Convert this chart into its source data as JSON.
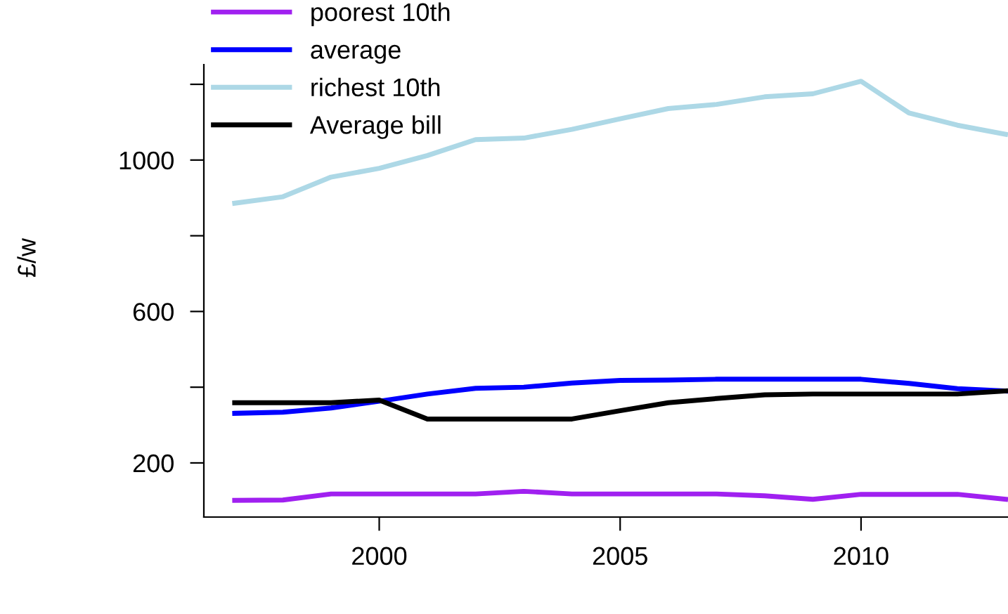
{
  "chart_data": {
    "type": "line",
    "ylabel": "£/w",
    "x": [
      1997,
      1998,
      1999,
      2000,
      2001,
      2002,
      2003,
      2004,
      2005,
      2006,
      2007,
      2008,
      2009,
      2010,
      2011,
      2012,
      2013
    ],
    "series": [
      {
        "name": "poorest 10th",
        "color": "#a020f0",
        "values": [
          101,
          102,
          118,
          118,
          118,
          118,
          125,
          118,
          118,
          118,
          118,
          113,
          104,
          117,
          117,
          117,
          104
        ]
      },
      {
        "name": "average",
        "color": "#0000ff",
        "values": [
          331,
          334,
          345,
          363,
          382,
          397,
          400,
          411,
          418,
          419,
          421,
          421,
          421,
          421,
          410,
          396,
          390
        ]
      },
      {
        "name": "richest 10th",
        "color": "#add8e6",
        "values": [
          886,
          903,
          955,
          978,
          1012,
          1054,
          1058,
          1081,
          1109,
          1136,
          1147,
          1167,
          1175,
          1208,
          1124,
          1092,
          1068
        ]
      },
      {
        "name": "Average bill",
        "color": "#000000",
        "values": [
          359,
          359,
          359,
          366,
          316,
          316,
          316,
          316,
          338,
          359,
          370,
          380,
          382,
          382,
          382,
          382,
          390
        ]
      }
    ],
    "xlim": [
      1996.36,
      2013.05
    ],
    "ylim": [
      57,
      1252
    ],
    "xticks": [
      2000,
      2005,
      2010
    ],
    "yticks": [
      200,
      {
        "value": 400,
        "label": null
      },
      600,
      {
        "value": 800,
        "label": null
      },
      1000,
      {
        "value": 1200,
        "label": null
      }
    ],
    "legend": "top left",
    "grid": false,
    "marker": "none",
    "line_style": "solid"
  }
}
